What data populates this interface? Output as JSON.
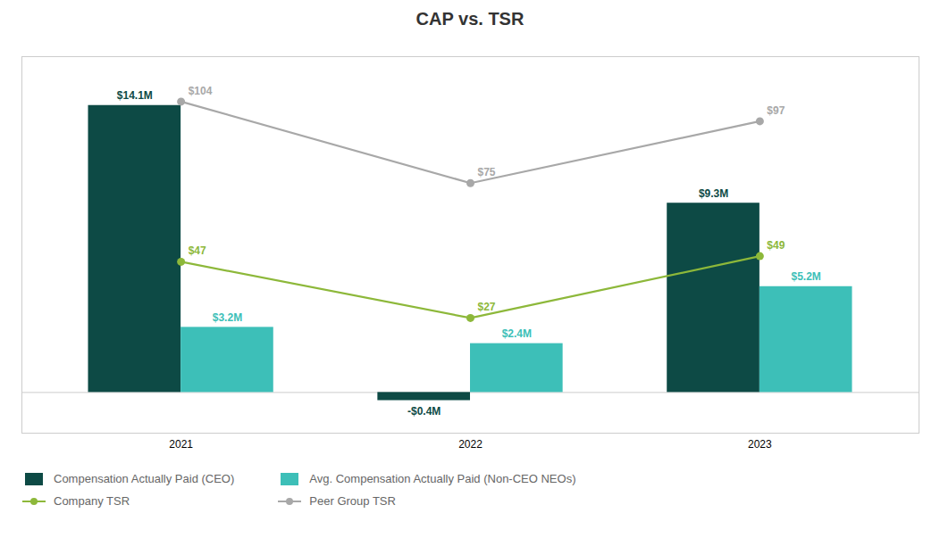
{
  "chart_data": {
    "type": "bar",
    "title": "CAP vs. TSR",
    "categories": [
      "2021",
      "2022",
      "2023"
    ],
    "series": [
      {
        "name": "Compensation Actually Paid (CEO)",
        "type": "bar",
        "color": "#0d4a45",
        "values": [
          14.1,
          -0.4,
          9.3
        ],
        "value_labels": [
          "$14.1M",
          "-$0.4M",
          "$9.3M"
        ]
      },
      {
        "name": "Avg. Compensation Actually Paid (Non-CEO NEOs)",
        "type": "bar",
        "color": "#3dbfb8",
        "values": [
          3.2,
          2.4,
          5.2
        ],
        "value_labels": [
          "$3.2M",
          "$2.4M",
          "$5.2M"
        ]
      },
      {
        "name": "Company TSR",
        "type": "line",
        "axis": "y2",
        "color": "#8db83a",
        "marker": "circle",
        "values": [
          47,
          27,
          49
        ],
        "value_labels": [
          "$47",
          "$27",
          "$49"
        ]
      },
      {
        "name": "Peer Group TSR",
        "type": "line",
        "axis": "y2",
        "color": "#a8a8a8",
        "marker": "circle",
        "values": [
          104,
          75,
          97
        ],
        "value_labels": [
          "$104",
          "$75",
          "$97"
        ]
      }
    ],
    "ylim": [
      -2.0,
      16.5
    ],
    "y2lim": [
      -14.0,
      120.0
    ],
    "data_labels": true,
    "tick_labels": "x",
    "legend": "bottom"
  }
}
